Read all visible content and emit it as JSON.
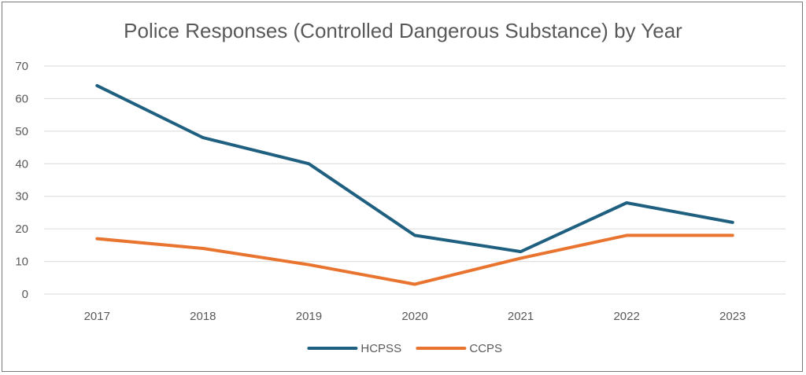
{
  "chart_data": {
    "type": "line",
    "title": "Police Responses (Controlled Dangerous Substance) by Year",
    "xlabel": "",
    "ylabel": "",
    "categories": [
      "2017",
      "2018",
      "2019",
      "2020",
      "2021",
      "2022",
      "2023"
    ],
    "series": [
      {
        "name": "HCPSS",
        "color": "#1f5f7f",
        "values": [
          64,
          48,
          40,
          18,
          13,
          28,
          22
        ]
      },
      {
        "name": "CCPS",
        "color": "#e8742f",
        "values": [
          17,
          14,
          9,
          3,
          11,
          18,
          18
        ]
      }
    ],
    "ylim": [
      0,
      70
    ],
    "yticks": [
      0,
      10,
      20,
      30,
      40,
      50,
      60,
      70
    ],
    "grid": true,
    "legend_position": "bottom"
  }
}
